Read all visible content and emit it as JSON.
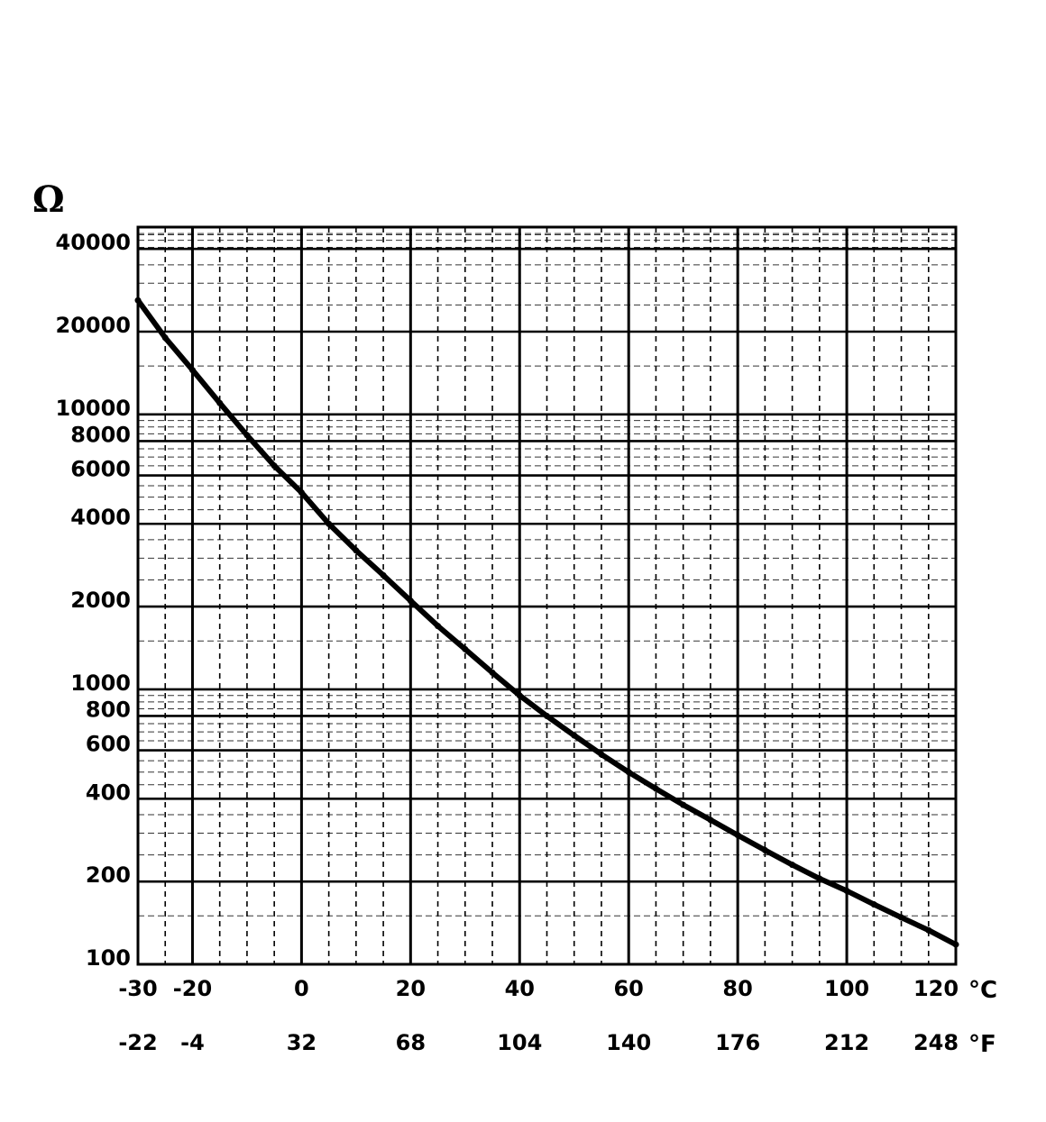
{
  "chart_data": {
    "type": "line",
    "ylabel": "Ω",
    "y_scale": "log",
    "ylim": [
      100,
      48000
    ],
    "xlim": [
      -30,
      120
    ],
    "grid": true,
    "x_ticks_celsius": [
      "-30",
      "-20",
      "0",
      "20",
      "40",
      "60",
      "80",
      "100",
      "120"
    ],
    "x_ticks_celsius_values": [
      -30,
      -20,
      0,
      20,
      40,
      60,
      80,
      100,
      120
    ],
    "x_unit_celsius": "°C",
    "x_ticks_fahrenheit": [
      "-22",
      "-4",
      "32",
      "68",
      "104",
      "140",
      "176",
      "212",
      "248"
    ],
    "x_unit_fahrenheit": "°F",
    "y_ticks": [
      "40000",
      "20000",
      "10000",
      "8000",
      "6000",
      "4000",
      "2000",
      "1000",
      "800",
      "600",
      "400",
      "200",
      "100"
    ],
    "y_tick_values": [
      40000,
      20000,
      10000,
      8000,
      6000,
      4000,
      2000,
      1000,
      800,
      600,
      400,
      200,
      100
    ],
    "series": [
      {
        "x": [
          -30,
          -25,
          -20,
          -15,
          -10,
          -5,
          0,
          5,
          10,
          15,
          20,
          25,
          30,
          35,
          40,
          45,
          50,
          55,
          60,
          65,
          70,
          75,
          80,
          85,
          90,
          95,
          100,
          105,
          110,
          115,
          120
        ],
        "values": [
          26000,
          19000,
          14500,
          11000,
          8400,
          6500,
          5200,
          4000,
          3200,
          2600,
          2100,
          1700,
          1400,
          1150,
          950,
          800,
          680,
          580,
          500,
          435,
          380,
          335,
          295,
          260,
          230,
          205,
          185,
          165,
          148,
          133,
          118
        ]
      }
    ]
  }
}
